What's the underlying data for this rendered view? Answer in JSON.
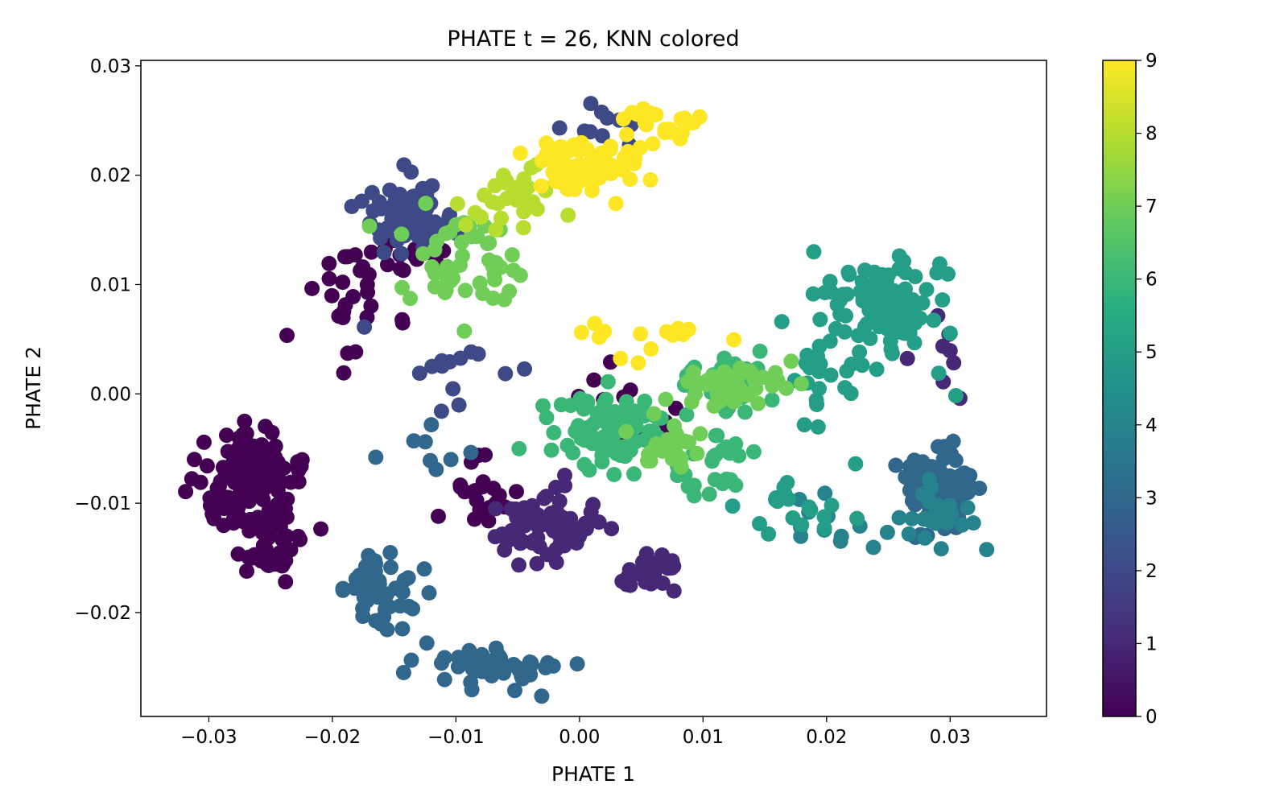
{
  "chart_data": {
    "type": "scatter",
    "title": "PHATE t = 26, KNN colored",
    "xlabel": "PHATE 1",
    "ylabel": "PHATE 2",
    "xlim": [
      -0.0355,
      0.0378
    ],
    "ylim": [
      -0.0295,
      0.0305
    ],
    "x_ticks": [
      -0.03,
      -0.02,
      -0.01,
      0.0,
      0.01,
      0.02,
      0.03
    ],
    "x_tick_labels": [
      "−0.03",
      "−0.02",
      "−0.01",
      "0.00",
      "0.01",
      "0.02",
      "0.03"
    ],
    "y_ticks": [
      -0.02,
      -0.01,
      0.0,
      0.01,
      0.02,
      0.03
    ],
    "y_tick_labels": [
      "−0.02",
      "−0.01",
      "0.00",
      "0.01",
      "0.02",
      "0.03"
    ],
    "grid": false,
    "colormap": "viridis",
    "colorbar": {
      "range": [
        0,
        9
      ],
      "ticks": [
        0,
        1,
        2,
        3,
        4,
        5,
        6,
        7,
        8,
        9
      ],
      "tick_labels": [
        "0",
        "1",
        "2",
        "3",
        "4",
        "5",
        "6",
        "7",
        "8",
        "9"
      ],
      "stops": [
        "#440154",
        "#472d7b",
        "#3b528b",
        "#2c728e",
        "#21918c",
        "#28ae80",
        "#5ec962",
        "#addc30",
        "#fde725"
      ]
    },
    "clusters": [
      {
        "value": 0,
        "center": [
          -0.027,
          -0.008
        ],
        "spread": [
          0.0035,
          0.0038
        ],
        "n": 140
      },
      {
        "value": 0,
        "center": [
          -0.025,
          -0.014
        ],
        "spread": [
          0.002,
          0.0025
        ],
        "n": 40
      },
      {
        "value": 0,
        "center": [
          -0.019,
          0.008
        ],
        "spread": [
          0.003,
          0.004
        ],
        "n": 25
      },
      {
        "value": 0,
        "center": [
          -0.008,
          -0.009
        ],
        "spread": [
          0.0025,
          0.003
        ],
        "n": 22
      },
      {
        "value": 0,
        "center": [
          -0.014,
          0.013
        ],
        "spread": [
          0.003,
          0.002
        ],
        "n": 20
      },
      {
        "value": 0,
        "center": [
          0.003,
          -0.002
        ],
        "spread": [
          0.004,
          0.003
        ],
        "n": 16
      },
      {
        "value": 1,
        "center": [
          -0.003,
          -0.012
        ],
        "spread": [
          0.0035,
          0.0025
        ],
        "n": 70
      },
      {
        "value": 1,
        "center": [
          0.006,
          -0.016
        ],
        "spread": [
          0.002,
          0.0015
        ],
        "n": 25
      },
      {
        "value": 1,
        "center": [
          0.03,
          0.005
        ],
        "spread": [
          0.002,
          0.005
        ],
        "n": 8
      },
      {
        "value": 2,
        "center": [
          -0.014,
          0.016
        ],
        "spread": [
          0.003,
          0.0028
        ],
        "n": 85
      },
      {
        "value": 2,
        "center": [
          0.002,
          0.024
        ],
        "spread": [
          0.003,
          0.002
        ],
        "n": 10
      },
      {
        "value": 2,
        "center": [
          -0.01,
          0.002
        ],
        "spread": [
          0.004,
          0.004
        ],
        "n": 14
      },
      {
        "value": 3,
        "center": [
          -0.016,
          -0.018
        ],
        "spread": [
          0.0025,
          0.0032
        ],
        "n": 60
      },
      {
        "value": 3,
        "center": [
          -0.007,
          -0.025
        ],
        "spread": [
          0.004,
          0.0018
        ],
        "n": 55
      },
      {
        "value": 3,
        "center": [
          0.029,
          -0.009
        ],
        "spread": [
          0.0025,
          0.003
        ],
        "n": 95
      },
      {
        "value": 3,
        "center": [
          -0.013,
          -0.006
        ],
        "spread": [
          0.003,
          0.004
        ],
        "n": 8
      },
      {
        "value": 4,
        "center": [
          0.029,
          -0.011
        ],
        "spread": [
          0.0028,
          0.0032
        ],
        "n": 25
      },
      {
        "value": 4,
        "center": [
          0.021,
          -0.012
        ],
        "spread": [
          0.004,
          0.0025
        ],
        "n": 12
      },
      {
        "value": 5,
        "center": [
          0.025,
          0.008
        ],
        "spread": [
          0.0045,
          0.0045
        ],
        "n": 95
      },
      {
        "value": 5,
        "center": [
          0.02,
          0.002
        ],
        "spread": [
          0.004,
          0.003
        ],
        "n": 22
      },
      {
        "value": 5,
        "center": [
          0.017,
          -0.01
        ],
        "spread": [
          0.004,
          0.003
        ],
        "n": 18
      },
      {
        "value": 6,
        "center": [
          0.002,
          -0.003
        ],
        "spread": [
          0.004,
          0.0035
        ],
        "n": 80
      },
      {
        "value": 6,
        "center": [
          0.012,
          0.001
        ],
        "spread": [
          0.0035,
          0.0025
        ],
        "n": 40
      },
      {
        "value": 6,
        "center": [
          0.01,
          -0.007
        ],
        "spread": [
          0.003,
          0.003
        ],
        "n": 25
      },
      {
        "value": 7,
        "center": [
          0.012,
          0.001
        ],
        "spread": [
          0.004,
          0.002
        ],
        "n": 45
      },
      {
        "value": 7,
        "center": [
          -0.01,
          0.012
        ],
        "spread": [
          0.004,
          0.004
        ],
        "n": 50
      },
      {
        "value": 7,
        "center": [
          0.008,
          -0.005
        ],
        "spread": [
          0.003,
          0.002
        ],
        "n": 25
      },
      {
        "value": 8,
        "center": [
          -0.005,
          0.018
        ],
        "spread": [
          0.0035,
          0.003
        ],
        "n": 35
      },
      {
        "value": 9,
        "center": [
          0.001,
          0.021
        ],
        "spread": [
          0.0045,
          0.002
        ],
        "n": 80
      },
      {
        "value": 9,
        "center": [
          0.007,
          0.025
        ],
        "spread": [
          0.003,
          0.0015
        ],
        "n": 20
      },
      {
        "value": 9,
        "center": [
          0.005,
          0.005
        ],
        "spread": [
          0.005,
          0.0015
        ],
        "n": 14
      }
    ]
  }
}
